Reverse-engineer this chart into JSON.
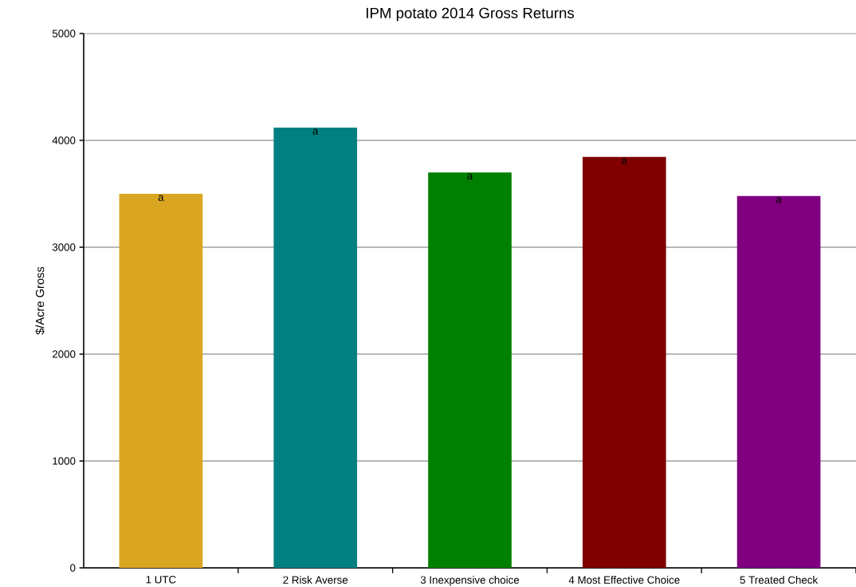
{
  "chart_data": {
    "type": "bar",
    "title": "IPM potato 2014 Gross Returns",
    "ylabel": "$/Acre Gross",
    "categories": [
      "1 UTC",
      "2 Risk Averse",
      "3 Inexpensive choice",
      "4 Most Effective Choice",
      "5 Treated Check"
    ],
    "values": [
      3500,
      4120,
      3700,
      3845,
      3480
    ],
    "colors": [
      "#daa520",
      "#008080",
      "#008000",
      "#800000",
      "#800080"
    ],
    "ylim": [
      0,
      5000
    ],
    "yticks": [
      0,
      1000,
      2000,
      3000,
      4000,
      5000
    ],
    "grid": "y",
    "annotations": [
      {
        "text": "a",
        "x": "1 UTC",
        "y": 3500
      },
      {
        "text": "a",
        "x": "2 Risk Averse",
        "y": 4120
      },
      {
        "text": "a",
        "x": "3 Inexpensive choice",
        "y": 3700
      },
      {
        "text": "a",
        "x": "4 Most Effective Choice",
        "y": 3845
      },
      {
        "text": "a",
        "x": "5 Treated Check",
        "y": 3480
      }
    ]
  }
}
